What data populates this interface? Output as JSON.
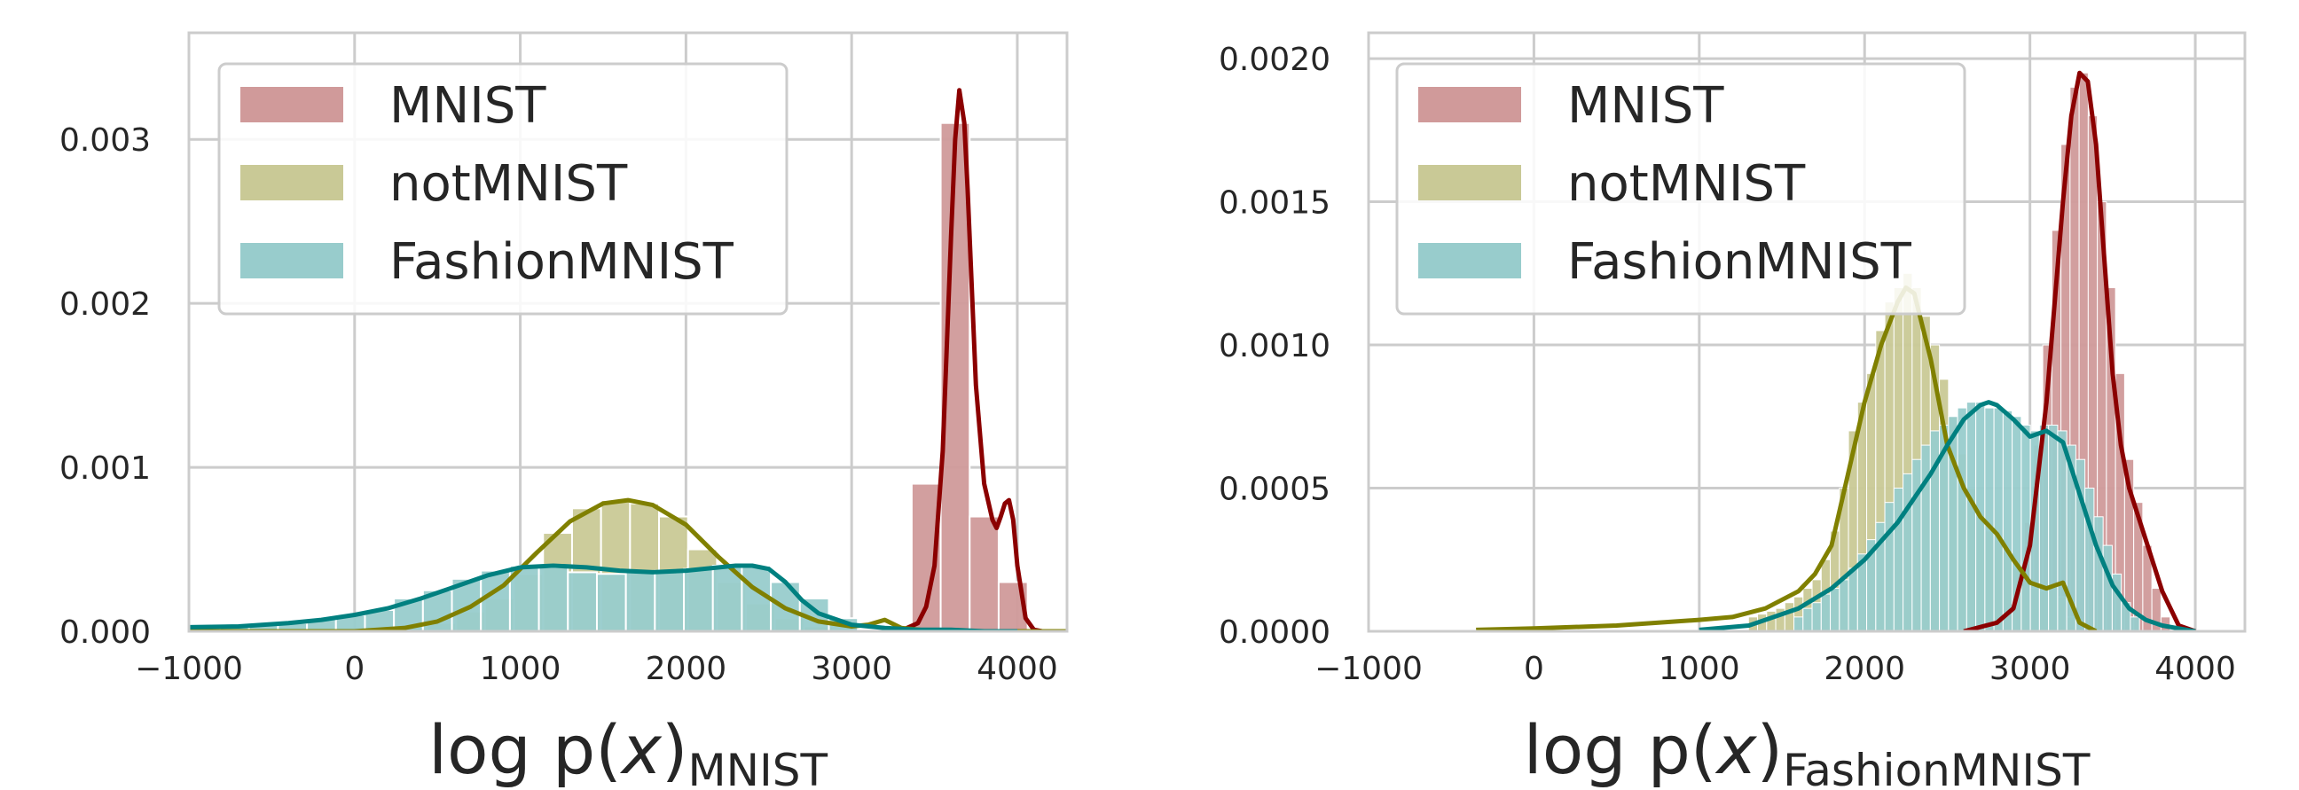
{
  "chart_data": [
    {
      "type": "histogram_kde",
      "xlabel": {
        "main": "log p(",
        "var": "x",
        "close": ")",
        "sub": "MNIST"
      },
      "ylabel": "",
      "xlim": [
        -1000,
        4300
      ],
      "ylim": [
        0,
        0.00365
      ],
      "xticks": [
        -1000,
        0,
        1000,
        2000,
        3000,
        4000
      ],
      "xtick_labels": [
        "−1000",
        "0",
        "1000",
        "2000",
        "3000",
        "4000"
      ],
      "yticks": [
        0,
        0.001,
        0.002,
        0.003
      ],
      "ytick_labels": [
        "0.000",
        "0.001",
        "0.002",
        "0.003"
      ],
      "grid": true,
      "legend_position": "upper-left",
      "bin_width": 175,
      "series": [
        {
          "name": "MNIST",
          "bar_color": "#d09a9a",
          "line_color": "#8b0000",
          "histogram": {
            "x": [
              3450,
              3625,
              3800,
              3975
            ],
            "y": [
              0.0009,
              0.0031,
              0.0007,
              0.0003
            ]
          },
          "kde": {
            "x": [
              3200,
              3300,
              3400,
              3450,
              3500,
              3550,
              3600,
              3625,
              3650,
              3680,
              3700,
              3750,
              3800,
              3850,
              3875,
              3900,
              3925,
              3950,
              3975,
              4000,
              4050,
              4100,
              4150
            ],
            "y": [
              0,
              5e-06,
              5e-05,
              0.00015,
              0.0004,
              0.0011,
              0.0024,
              0.003,
              0.0033,
              0.0031,
              0.0027,
              0.0015,
              0.0009,
              0.00068,
              0.00063,
              0.0007,
              0.00078,
              0.0008,
              0.00068,
              0.0004,
              8e-05,
              1e-05,
              0
            ]
          }
        },
        {
          "name": "notMNIST",
          "bar_color": "#c9c996",
          "line_color": "#808000",
          "histogram": {
            "x": [
              350,
              525,
              700,
              875,
              1050,
              1225,
              1400,
              1575,
              1750,
              1925,
              2100,
              2275,
              2450,
              2625,
              2800
            ],
            "y": [
              2e-05,
              5e-05,
              0.00012,
              0.0002,
              0.00035,
              0.0006,
              0.00075,
              0.0008,
              0.00078,
              0.0007,
              0.0005,
              0.0003,
              0.00017,
              8e-05,
              3e-05
            ]
          },
          "kde": {
            "x": [
              -1000,
              0,
              300,
              500,
              700,
              900,
              1100,
              1300,
              1500,
              1650,
              1800,
              2000,
              2200,
              2400,
              2600,
              2800,
              3000,
              3100,
              3200,
              3300,
              3500,
              4300
            ],
            "y": [
              0,
              0,
              2e-05,
              6e-05,
              0.00015,
              0.00028,
              0.00048,
              0.00067,
              0.00078,
              0.0008,
              0.00077,
              0.00065,
              0.00045,
              0.00027,
              0.00014,
              6e-05,
              3e-05,
              4e-05,
              7e-05,
              2e-05,
              0,
              0
            ]
          }
        },
        {
          "name": "FashionMNIST",
          "bar_color": "#98cccc",
          "line_color": "#008080",
          "histogram": {
            "x": [
              -900,
              -725,
              -550,
              -375,
              -200,
              -25,
              150,
              325,
              500,
              675,
              850,
              1025,
              1200,
              1375,
              1550,
              1725,
              1900,
              2075,
              2250,
              2425,
              2600,
              2775,
              2950
            ],
            "y": [
              2e-05,
              3e-05,
              4e-05,
              5e-05,
              8e-05,
              0.0001,
              0.00013,
              0.0002,
              0.00025,
              0.00032,
              0.00037,
              0.0004,
              0.00039,
              0.00036,
              0.00035,
              0.00036,
              0.00037,
              0.00038,
              0.0004,
              0.0004,
              0.0003,
              0.0002,
              8e-05
            ]
          },
          "kde": {
            "x": [
              -1000,
              -700,
              -400,
              -200,
              0,
              200,
              400,
              600,
              800,
              1000,
              1200,
              1400,
              1600,
              1800,
              2000,
              2200,
              2300,
              2400,
              2500,
              2600,
              2700,
              2800,
              3000,
              3200,
              3400,
              3600,
              3800,
              4000
            ],
            "y": [
              2.5e-05,
              3e-05,
              5e-05,
              7e-05,
              0.0001,
              0.00014,
              0.0002,
              0.00027,
              0.00034,
              0.00039,
              0.0004,
              0.00039,
              0.00037,
              0.00036,
              0.00037,
              0.00039,
              0.0004,
              0.0004,
              0.00038,
              0.0003,
              0.00019,
              0.00011,
              4e-05,
              2e-05,
              1e-05,
              1e-05,
              0,
              0
            ]
          }
        }
      ]
    },
    {
      "type": "histogram_kde",
      "xlabel": {
        "main": "log p(",
        "var": "x",
        "close": ")",
        "sub": "FashionMNIST"
      },
      "ylabel": "",
      "xlim": [
        -1000,
        4300
      ],
      "ylim": [
        0,
        0.00209
      ],
      "xticks": [
        -1000,
        0,
        1000,
        2000,
        3000,
        4000
      ],
      "xtick_labels": [
        "−1000",
        "0",
        "1000",
        "2000",
        "3000",
        "4000"
      ],
      "yticks": [
        0,
        0.0005,
        0.001,
        0.0015,
        0.002
      ],
      "ytick_labels": [
        "0.0000",
        "0.0005",
        "0.0010",
        "0.0015",
        "0.0020"
      ],
      "grid": true,
      "legend_position": "upper-left",
      "bin_width": 55,
      "series": [
        {
          "name": "MNIST",
          "bar_color": "#d09a9a",
          "line_color": "#8b0000",
          "histogram": {
            "x": [
              2775,
              2830,
              2885,
              2940,
              2995,
              3050,
              3105,
              3160,
              3215,
              3270,
              3325,
              3380,
              3435,
              3490,
              3545,
              3600,
              3655,
              3710,
              3765,
              3820
            ],
            "y": [
              2e-05,
              5e-05,
              0.0001,
              0.0002,
              0.00038,
              0.00065,
              0.001,
              0.0014,
              0.0017,
              0.0019,
              0.00195,
              0.0018,
              0.0015,
              0.0012,
              0.0009,
              0.0006,
              0.00045,
              0.0003,
              0.00015,
              5e-05
            ]
          },
          "kde": {
            "x": [
              2600,
              2800,
              2900,
              3000,
              3100,
              3200,
              3250,
              3300,
              3350,
              3400,
              3450,
              3500,
              3550,
              3600,
              3700,
              3800,
              3900,
              4000
            ],
            "y": [
              0,
              3e-05,
              8e-05,
              0.0003,
              0.0008,
              0.0015,
              0.0018,
              0.00195,
              0.00192,
              0.0017,
              0.0013,
              0.0009,
              0.00065,
              0.0005,
              0.00032,
              0.00014,
              2e-05,
              0
            ]
          }
        },
        {
          "name": "notMNIST",
          "bar_color": "#c9c996",
          "line_color": "#808000",
          "histogram": {
            "x": [
              1325,
              1380,
              1435,
              1490,
              1545,
              1600,
              1655,
              1710,
              1765,
              1820,
              1875,
              1930,
              1985,
              2040,
              2095,
              2150,
              2205,
              2260,
              2315,
              2370,
              2425,
              2480,
              2535,
              2590,
              2645,
              2700,
              2755,
              2810,
              2865,
              2920,
              2975,
              3030,
              3085,
              3140,
              3195,
              3250
            ],
            "y": [
              5e-05,
              6e-05,
              7e-05,
              8e-05,
              0.0001,
              0.00012,
              0.00015,
              0.00018,
              0.00025,
              0.00035,
              0.0005,
              0.0007,
              0.0008,
              0.0009,
              0.00105,
              0.00115,
              0.0012,
              0.00125,
              0.0012,
              0.0011,
              0.001,
              0.00088,
              0.00075,
              0.00062,
              0.0005,
              0.0004,
              0.00035,
              0.00032,
              0.00028,
              0.00022,
              0.00018,
              0.00015,
              0.00014,
              0.00016,
              0.00012,
              5e-05
            ]
          },
          "kde": {
            "x": [
              -350,
              0,
              500,
              1000,
              1200,
              1400,
              1600,
              1700,
              1800,
              1900,
              2000,
              2100,
              2200,
              2250,
              2300,
              2400,
              2500,
              2600,
              2700,
              2800,
              2900,
              3000,
              3100,
              3150,
              3200,
              3250,
              3300,
              3400
            ],
            "y": [
              5e-06,
              1e-05,
              2e-05,
              4e-05,
              5e-05,
              8e-05,
              0.00014,
              0.0002,
              0.0003,
              0.00055,
              0.0008,
              0.001,
              0.00115,
              0.0012,
              0.00118,
              0.00095,
              0.00065,
              0.0005,
              0.0004,
              0.00034,
              0.00025,
              0.00017,
              0.00015,
              0.00016,
              0.00017,
              0.0001,
              3e-05,
              0
            ]
          }
        },
        {
          "name": "FashionMNIST",
          "bar_color": "#98cccc",
          "line_color": "#008080",
          "histogram": {
            "x": [
              1600,
              1655,
              1710,
              1765,
              1820,
              1875,
              1930,
              1985,
              2040,
              2095,
              2150,
              2205,
              2260,
              2315,
              2370,
              2425,
              2480,
              2535,
              2590,
              2645,
              2700,
              2755,
              2810,
              2865,
              2920,
              2975,
              3030,
              3085,
              3140,
              3195,
              3250,
              3305,
              3360,
              3415,
              3470,
              3525,
              3580,
              3635
            ],
            "y": [
              5e-05,
              8e-05,
              0.0001,
              0.00013,
              0.00015,
              0.00018,
              0.00022,
              0.00027,
              0.00032,
              0.00038,
              0.00045,
              0.0005,
              0.00055,
              0.0006,
              0.00065,
              0.0007,
              0.00072,
              0.00075,
              0.00078,
              0.0008,
              0.0008,
              0.00078,
              0.00078,
              0.00077,
              0.00075,
              0.00072,
              0.0007,
              0.00072,
              0.00072,
              0.0007,
              0.00065,
              0.0006,
              0.0005,
              0.0004,
              0.0003,
              0.0002,
              0.0001,
              5e-05
            ]
          },
          "kde": {
            "x": [
              1000,
              1300,
              1600,
              1800,
              2000,
              2200,
              2400,
              2500,
              2600,
              2700,
              2750,
              2800,
              2900,
              3000,
              3100,
              3200,
              3300,
              3400,
              3500,
              3600,
              3700,
              3800,
              3900,
              4000
            ],
            "y": [
              5e-06,
              2e-05,
              8e-05,
              0.00015,
              0.00025,
              0.00038,
              0.00055,
              0.00065,
              0.00074,
              0.00079,
              0.0008,
              0.00079,
              0.00074,
              0.00068,
              0.0007,
              0.00066,
              0.00048,
              0.0003,
              0.00016,
              8e-05,
              4e-05,
              2e-05,
              1e-05,
              0
            ]
          }
        }
      ]
    }
  ]
}
